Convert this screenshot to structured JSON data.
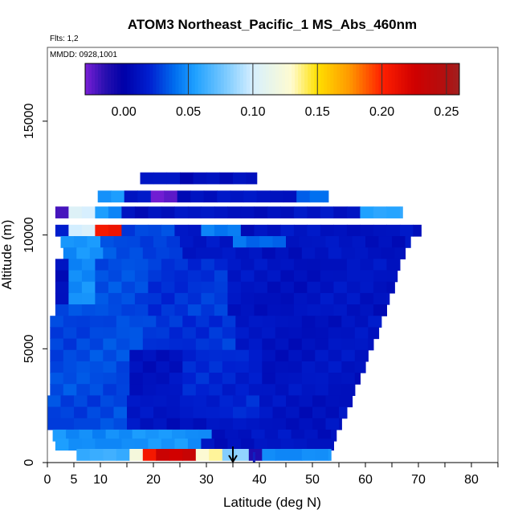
{
  "chart_data": {
    "type": "heatmap",
    "title": "ATOM3 Northeast_Pacific_1 MS_Abs_460nm",
    "flights_label": "Flts: 1,2",
    "mmdd_label": "MMDD: 0928,1001",
    "xlabel": "Latitude (deg N)",
    "ylabel": "Altitude (m)",
    "xlim": [
      0,
      85
    ],
    "ylim": [
      0,
      17500
    ],
    "x_tick_labels": [
      "0",
      "5",
      "10",
      "20",
      "30",
      "40",
      "50",
      "60",
      "70",
      "80"
    ],
    "y_tick_labels": [
      "0",
      "5000",
      "10000",
      "15000"
    ],
    "colorbar": {
      "range": [
        -0.03,
        0.26
      ],
      "tick_labels": [
        "0.00",
        "0.05",
        "0.10",
        "0.15",
        "0.20",
        "0.25"
      ],
      "stops": [
        {
          "v": -0.03,
          "c": "#7a1fd6"
        },
        {
          "v": -0.015,
          "c": "#2a10b0"
        },
        {
          "v": 0.0,
          "c": "#0000a8"
        },
        {
          "v": 0.02,
          "c": "#0020d0"
        },
        {
          "v": 0.04,
          "c": "#0070f0"
        },
        {
          "v": 0.055,
          "c": "#1ea0ff"
        },
        {
          "v": 0.08,
          "c": "#80ccff"
        },
        {
          "v": 0.1,
          "c": "#d6efff"
        },
        {
          "v": 0.13,
          "c": "#fffbd0"
        },
        {
          "v": 0.15,
          "c": "#ffe000"
        },
        {
          "v": 0.175,
          "c": "#ff9800"
        },
        {
          "v": 0.2,
          "c": "#ff2000"
        },
        {
          "v": 0.225,
          "c": "#d00000"
        },
        {
          "v": 0.25,
          "c": "#b01010"
        },
        {
          "v": 0.26,
          "c": "#a02020"
        }
      ]
    },
    "arrow_marker": {
      "lat": 35,
      "label": "↓"
    },
    "curtain": {
      "lat_step": 2.5,
      "background_value": 0.012,
      "rows": [
        {
          "alt": 12500,
          "lat0": 17.5,
          "lat1": 39.5
        },
        {
          "alt": 11700,
          "lat0": 9.5,
          "lat1": 53
        },
        {
          "alt": 11000,
          "lat0": 1.5,
          "lat1": 67
        },
        {
          "alt": 10200,
          "lat0": 1.5,
          "lat1": 70.5
        },
        {
          "alt": 9700,
          "lat0": 2.5,
          "lat1": 68.5
        },
        {
          "alt": 9200,
          "lat0": 3,
          "lat1": 67.5
        },
        {
          "alt": 8700,
          "lat0": 1.5,
          "lat1": 66.5
        },
        {
          "alt": 8200,
          "lat0": 1.5,
          "lat1": 66
        },
        {
          "alt": 7700,
          "lat0": 1.5,
          "lat1": 65.5
        },
        {
          "alt": 7200,
          "lat0": 1.5,
          "lat1": 64.5
        },
        {
          "alt": 6700,
          "lat0": 1.5,
          "lat1": 64
        },
        {
          "alt": 6200,
          "lat0": 0.5,
          "lat1": 63
        },
        {
          "alt": 5700,
          "lat0": 0.5,
          "lat1": 62.5
        },
        {
          "alt": 5200,
          "lat0": 0.5,
          "lat1": 61.5
        },
        {
          "alt": 4700,
          "lat0": 0.5,
          "lat1": 60.5
        },
        {
          "alt": 4200,
          "lat0": 0.5,
          "lat1": 60
        },
        {
          "alt": 3700,
          "lat0": 0.5,
          "lat1": 59
        },
        {
          "alt": 3200,
          "lat0": 0.5,
          "lat1": 58
        },
        {
          "alt": 2700,
          "lat0": 0,
          "lat1": 57.5
        },
        {
          "alt": 2200,
          "lat0": 0,
          "lat1": 56.5
        },
        {
          "alt": 1700,
          "lat0": 0,
          "lat1": 55.5
        },
        {
          "alt": 1200,
          "lat0": 1,
          "lat1": 54.5
        },
        {
          "alt": 800,
          "lat0": 1.5,
          "lat1": 54
        },
        {
          "alt": 350,
          "lat0": 5.5,
          "lat1": 53.5
        }
      ],
      "features": [
        {
          "lat_min": 3,
          "lat_max": 15,
          "alt_min": 7000,
          "alt_max": 12000,
          "value": 0.05
        },
        {
          "lat_min": 10,
          "lat_max": 25,
          "alt_min": 5000,
          "alt_max": 11000,
          "value": 0.03
        },
        {
          "lat_min": 0,
          "lat_max": 15,
          "alt_min": 1000,
          "alt_max": 7000,
          "value": 0.03
        },
        {
          "lat_min": 5,
          "lat_max": 10,
          "alt_min": 10000,
          "alt_max": 11500,
          "value": 0.1
        },
        {
          "lat_min": 8.5,
          "lat_max": 13.5,
          "alt_min": 10000,
          "alt_max": 10500,
          "value": 0.16
        },
        {
          "lat_min": 10,
          "lat_max": 13,
          "alt_min": 10000,
          "alt_max": 10500,
          "value": 0.21
        },
        {
          "lat_min": 1.5,
          "lat_max": 5,
          "alt_min": 10800,
          "alt_max": 11300,
          "value": -0.02
        },
        {
          "lat_min": 19,
          "lat_max": 24,
          "alt_min": 11500,
          "alt_max": 12000,
          "value": -0.025
        },
        {
          "lat_min": 28,
          "lat_max": 37,
          "alt_min": 10000,
          "alt_max": 11000,
          "value": 0.045
        },
        {
          "lat_min": 47,
          "lat_max": 53,
          "alt_min": 11500,
          "alt_max": 12000,
          "value": 0.04
        },
        {
          "lat_min": 58,
          "lat_max": 67,
          "alt_min": 10800,
          "alt_max": 11300,
          "value": 0.06
        },
        {
          "lat_min": 35,
          "lat_max": 45,
          "alt_min": 9600,
          "alt_max": 10200,
          "value": 0.04
        },
        {
          "lat_min": 18,
          "lat_max": 35,
          "alt_min": 5000,
          "alt_max": 9000,
          "value": 0.025
        },
        {
          "lat_min": 25,
          "lat_max": 40,
          "alt_min": 2000,
          "alt_max": 5000,
          "value": 0.02
        },
        {
          "lat_min": 0,
          "lat_max": 30,
          "alt_min": 600,
          "alt_max": 1700,
          "value": 0.05
        },
        {
          "lat_min": 5.5,
          "lat_max": 16,
          "alt_min": 0,
          "alt_max": 600,
          "value": 0.06
        },
        {
          "lat_min": 15,
          "lat_max": 19,
          "alt_min": 0,
          "alt_max": 600,
          "value": 0.12
        },
        {
          "lat_min": 19,
          "lat_max": 29,
          "alt_min": 0,
          "alt_max": 600,
          "value": 0.21
        },
        {
          "lat_min": 21,
          "lat_max": 27,
          "alt_min": 0,
          "alt_max": 600,
          "value": 0.23
        },
        {
          "lat_min": 29,
          "lat_max": 34,
          "alt_min": 0,
          "alt_max": 600,
          "value": 0.13
        },
        {
          "lat_min": 34,
          "lat_max": 38,
          "alt_min": 0,
          "alt_max": 600,
          "value": 0.08
        },
        {
          "lat_min": 39,
          "lat_max": 53.5,
          "alt_min": 0,
          "alt_max": 600,
          "value": 0.05
        },
        {
          "lat_min": 38,
          "lat_max": 40,
          "alt_min": 0,
          "alt_max": 600,
          "value": -0.01
        },
        {
          "lat_min": 25.5,
          "lat_max": 26.5,
          "alt_min": 12500,
          "alt_max": 13000,
          "value": 0.0
        }
      ]
    }
  }
}
